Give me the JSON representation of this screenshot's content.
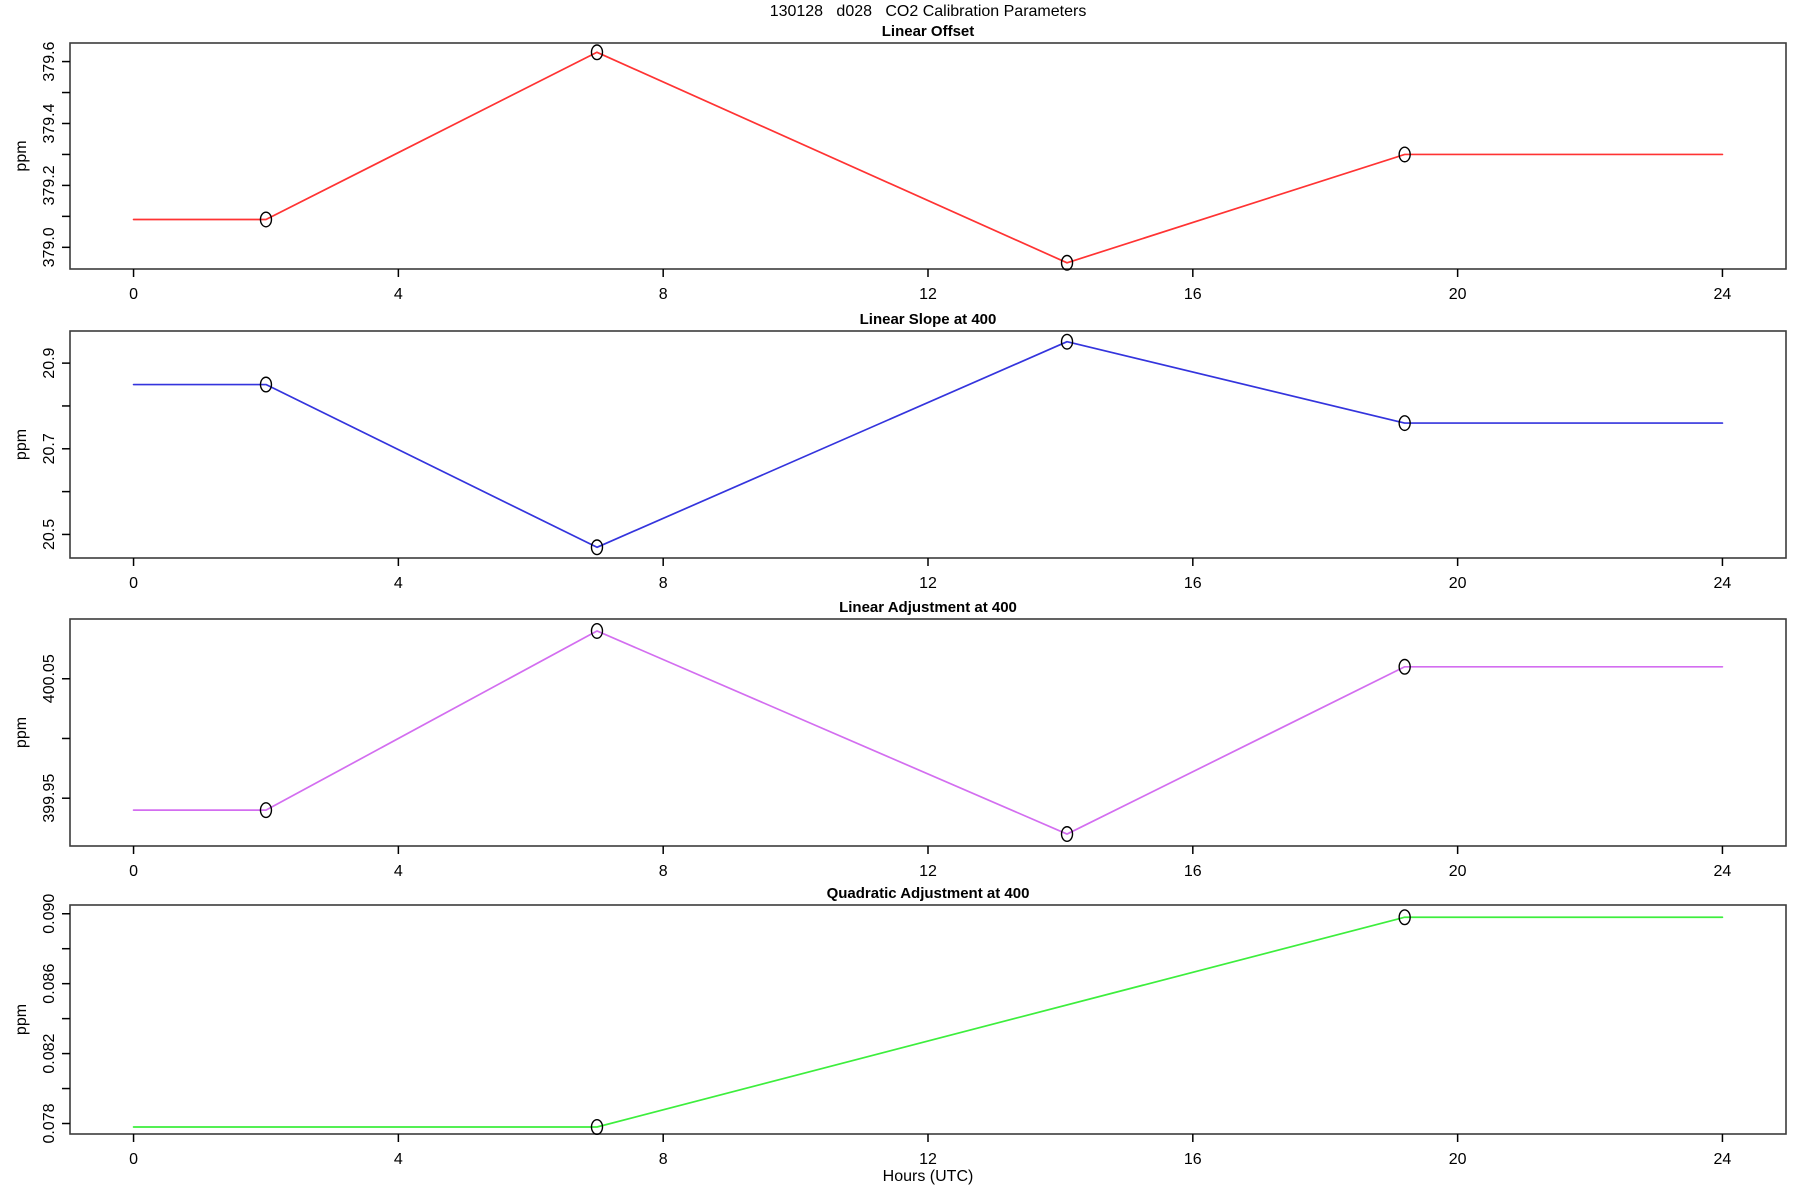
{
  "page_title": "130128   d028   CO2 Calibration Parameters",
  "x_axis": {
    "label": "Hours (UTC)",
    "min": 0,
    "max": 24,
    "ticks": [
      0,
      4,
      8,
      12,
      16,
      20,
      24
    ],
    "tick_labels": [
      "0",
      "4",
      "8",
      "12",
      "16",
      "20",
      "24"
    ]
  },
  "chart_data": [
    {
      "type": "line",
      "title": "Linear Offset",
      "ylabel": "ppm",
      "color": "#ff3333",
      "marker": "open-circle",
      "marker_color": "#000000",
      "grid": false,
      "legend": "none",
      "ylim": [
        378.93,
        379.66
      ],
      "yticks": [
        {
          "value": 379.0,
          "label": "379.0"
        },
        {
          "value": 379.1,
          "label": ""
        },
        {
          "value": 379.2,
          "label": "379.2"
        },
        {
          "value": 379.3,
          "label": ""
        },
        {
          "value": 379.4,
          "label": "379.4"
        },
        {
          "value": 379.5,
          "label": ""
        },
        {
          "value": 379.6,
          "label": "379.6"
        }
      ],
      "line": {
        "x": [
          0,
          2,
          7,
          14.1,
          19.2,
          24
        ],
        "y": [
          379.09,
          379.09,
          379.63,
          378.95,
          379.3,
          379.3
        ]
      },
      "points": {
        "x": [
          2,
          7,
          14.1,
          19.2
        ],
        "y": [
          379.09,
          379.63,
          378.95,
          379.3
        ]
      }
    },
    {
      "type": "line",
      "title": "Linear Slope at 400",
      "ylabel": "ppm",
      "color": "#3434dd",
      "marker": "open-circle",
      "marker_color": "#000000",
      "grid": false,
      "legend": "none",
      "ylim": [
        20.445,
        20.975
      ],
      "yticks": [
        {
          "value": 20.5,
          "label": "20.5"
        },
        {
          "value": 20.6,
          "label": ""
        },
        {
          "value": 20.7,
          "label": "20.7"
        },
        {
          "value": 20.8,
          "label": ""
        },
        {
          "value": 20.9,
          "label": "20.9"
        }
      ],
      "line": {
        "x": [
          0,
          2,
          7,
          14.1,
          19.2,
          24
        ],
        "y": [
          20.85,
          20.85,
          20.47,
          20.95,
          20.76,
          20.76
        ]
      },
      "points": {
        "x": [
          2,
          7,
          14.1,
          19.2
        ],
        "y": [
          20.85,
          20.47,
          20.95,
          20.76
        ]
      }
    },
    {
      "type": "line",
      "title": "Linear Adjustment at 400",
      "ylabel": "ppm",
      "color": "#d36ef0",
      "marker": "open-circle",
      "marker_color": "#000000",
      "grid": false,
      "legend": "none",
      "ylim": [
        399.91,
        400.1
      ],
      "yticks": [
        {
          "value": 399.95,
          "label": "399.95"
        },
        {
          "value": 400.0,
          "label": ""
        },
        {
          "value": 400.05,
          "label": "400.05"
        }
      ],
      "line": {
        "x": [
          0,
          2,
          7,
          14.1,
          19.2,
          24
        ],
        "y": [
          399.94,
          399.94,
          400.09,
          399.92,
          400.06,
          400.06
        ]
      },
      "points": {
        "x": [
          2,
          7,
          14.1,
          19.2
        ],
        "y": [
          399.94,
          400.09,
          399.92,
          400.06
        ]
      }
    },
    {
      "type": "line",
      "title": "Quadratic Adjustment at 400",
      "ylabel": "ppm",
      "color": "#3dee3d",
      "marker": "open-circle",
      "marker_color": "#000000",
      "grid": false,
      "legend": "none",
      "ylim": [
        0.0774,
        0.0905
      ],
      "yticks": [
        {
          "value": 0.078,
          "label": "0.078"
        },
        {
          "value": 0.08,
          "label": ""
        },
        {
          "value": 0.082,
          "label": "0.082"
        },
        {
          "value": 0.084,
          "label": ""
        },
        {
          "value": 0.086,
          "label": "0.086"
        },
        {
          "value": 0.088,
          "label": ""
        },
        {
          "value": 0.09,
          "label": "0.090"
        }
      ],
      "line": {
        "x": [
          0,
          7,
          19.2,
          24
        ],
        "y": [
          0.0778,
          0.0778,
          0.0898,
          0.0898
        ]
      },
      "points": {
        "x": [
          7,
          19.2
        ],
        "y": [
          0.0778,
          0.0898
        ]
      }
    }
  ]
}
